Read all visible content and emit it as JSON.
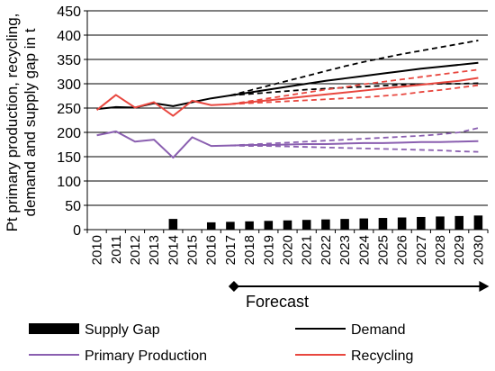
{
  "chart_data": {
    "type": "line",
    "title": "",
    "ylabel_lines": [
      "Pt primary production, recycling,",
      "demand and supply gap in t"
    ],
    "xlabel": "",
    "ylim": [
      0,
      450
    ],
    "yticks": [
      0,
      50,
      100,
      150,
      200,
      250,
      300,
      350,
      400,
      450
    ],
    "grid": "horizontal",
    "categories": [
      "2010",
      "2011",
      "2012",
      "2013",
      "2014",
      "2015",
      "2016",
      "2017",
      "2018",
      "2019",
      "2020",
      "2021",
      "2022",
      "2023",
      "2024",
      "2025",
      "2026",
      "2027",
      "2028",
      "2029",
      "2030"
    ],
    "forecast_label": "Forecast",
    "forecast_range": [
      "2017",
      "2030"
    ],
    "series": [
      {
        "name": "Supply Gap",
        "kind": "bar",
        "color": "#000000",
        "values": [
          0,
          0,
          0,
          0,
          22,
          0,
          15,
          16,
          17,
          18,
          19,
          20,
          21,
          22,
          23,
          24,
          25,
          26,
          27,
          28,
          29
        ]
      },
      {
        "name": "Demand",
        "kind": "line",
        "color": "#000000",
        "values": [
          248,
          252,
          251,
          260,
          254,
          262,
          270,
          276,
          282,
          288,
          294,
          300,
          306,
          311,
          316,
          321,
          326,
          331,
          335,
          339,
          343
        ]
      },
      {
        "name": "Demand (high)",
        "kind": "dashed",
        "color": "#000000",
        "values": [
          null,
          null,
          null,
          null,
          null,
          null,
          null,
          276,
          286,
          296,
          306,
          316,
          326,
          336,
          345,
          353,
          361,
          368,
          375,
          382,
          389
        ]
      },
      {
        "name": "Demand (low)",
        "kind": "dashed",
        "color": "#000000",
        "values": [
          null,
          null,
          null,
          null,
          null,
          null,
          null,
          276,
          279,
          282,
          285,
          288,
          290,
          292,
          294,
          296,
          298,
          299,
          300,
          300,
          301
        ]
      },
      {
        "name": "Recycling",
        "kind": "line",
        "color": "#e8473f",
        "values": [
          246,
          277,
          251,
          262,
          234,
          265,
          256,
          258,
          262,
          266,
          270,
          274,
          278,
          282,
          286,
          290,
          294,
          298,
          302,
          306,
          312
        ]
      },
      {
        "name": "Recycling (high)",
        "kind": "dashed",
        "color": "#e8473f",
        "values": [
          null,
          null,
          null,
          null,
          null,
          null,
          null,
          258,
          264,
          270,
          276,
          282,
          288,
          293,
          299,
          304,
          309,
          314,
          319,
          324,
          329
        ]
      },
      {
        "name": "Recycling (low)",
        "kind": "dashed",
        "color": "#e8473f",
        "values": [
          null,
          null,
          null,
          null,
          null,
          null,
          null,
          258,
          260,
          262,
          264,
          266,
          268,
          270,
          272,
          275,
          278,
          283,
          287,
          292,
          297
        ]
      },
      {
        "name": "Primary Production",
        "kind": "line",
        "color": "#8a5fb0",
        "values": [
          194,
          202,
          181,
          185,
          148,
          190,
          172,
          173,
          174,
          174,
          175,
          176,
          176,
          177,
          178,
          178,
          179,
          180,
          180,
          181,
          182
        ]
      },
      {
        "name": "Primary Production (high)",
        "kind": "dashed",
        "color": "#8a5fb0",
        "values": [
          null,
          null,
          null,
          null,
          null,
          null,
          null,
          173,
          175,
          177,
          179,
          181,
          183,
          185,
          187,
          189,
          191,
          193,
          196,
          200,
          209
        ]
      },
      {
        "name": "Primary Production (low)",
        "kind": "dashed",
        "color": "#8a5fb0",
        "values": [
          null,
          null,
          null,
          null,
          null,
          null,
          null,
          173,
          172,
          172,
          171,
          170,
          169,
          168,
          167,
          166,
          165,
          164,
          163,
          161,
          160
        ]
      }
    ],
    "legend": [
      {
        "label": "Supply Gap",
        "symbol": "bar",
        "color": "#000000"
      },
      {
        "label": "Demand",
        "symbol": "line",
        "color": "#000000"
      },
      {
        "label": "Primary Production",
        "symbol": "line",
        "color": "#8a5fb0"
      },
      {
        "label": "Recycling",
        "symbol": "line",
        "color": "#e8473f"
      }
    ]
  }
}
